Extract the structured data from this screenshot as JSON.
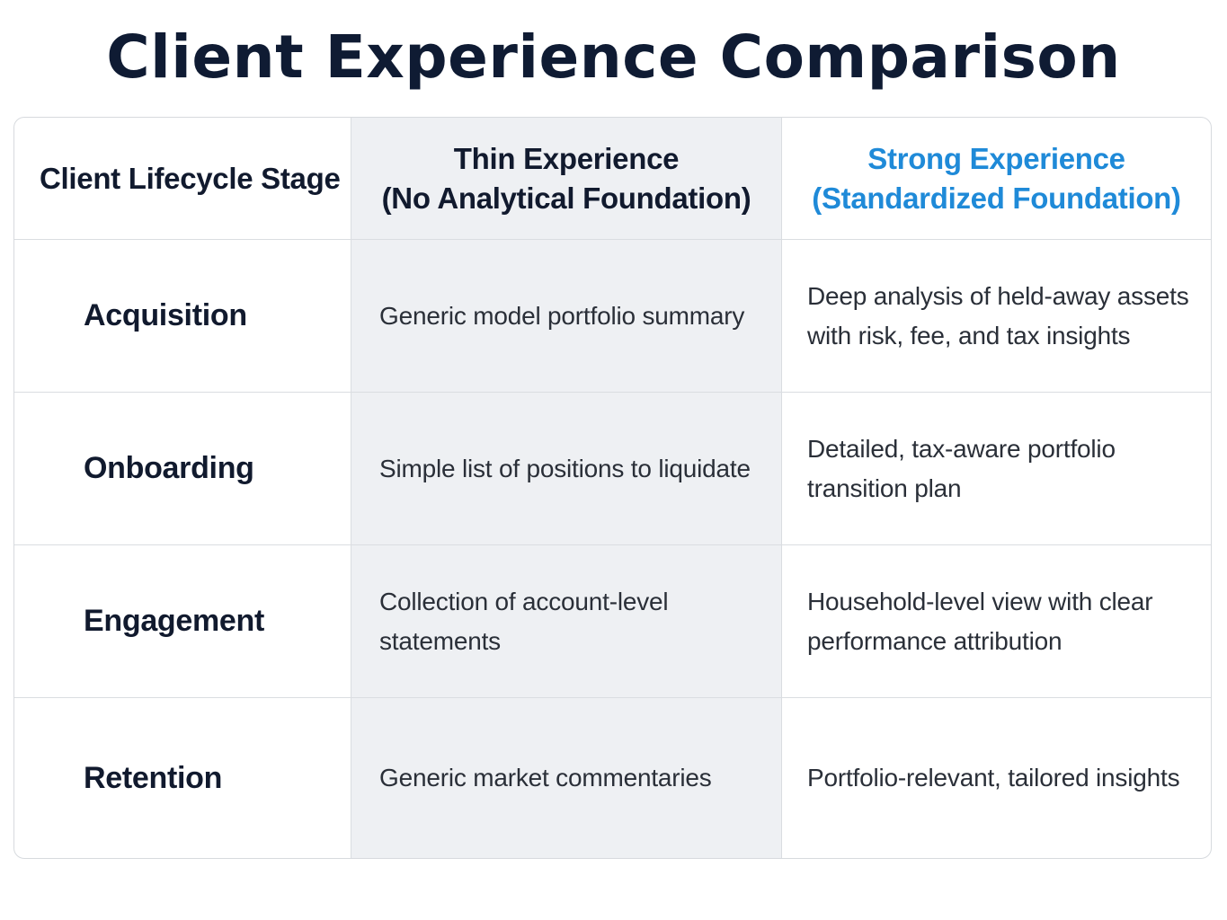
{
  "title": "Client Experience Comparison",
  "header": {
    "stage": "Client Lifecycle Stage",
    "thin_line1": "Thin Experience",
    "thin_line2": "(No Analytical Foundation)",
    "strong_line1": "Strong Experience",
    "strong_line2": "(Standardized Foundation)"
  },
  "rows": [
    {
      "stage": "Acquisition",
      "thin": "Generic model portfolio summary",
      "strong_line1": "Deep analysis of held-away assets",
      "strong_line2": "with risk, fee, and tax insights"
    },
    {
      "stage": "Onboarding",
      "thin": "Simple list of positions to liquidate",
      "strong_line1": "Detailed, tax-aware portfolio",
      "strong_line2": "transition plan"
    },
    {
      "stage": "Engagement",
      "thin_line1": "Collection of account-level",
      "thin_line2": "statements",
      "strong_line1": "Household-level view with clear",
      "strong_line2": "performance attribution"
    },
    {
      "stage": "Retention",
      "thin": "Generic market commentaries",
      "strong": "Portfolio-relevant, tailored insights"
    }
  ],
  "colors": {
    "title": "#0f1b33",
    "strong_header": "#1f8ad8",
    "middle_column_bg": "#eef0f3",
    "border": "#d7dade"
  }
}
